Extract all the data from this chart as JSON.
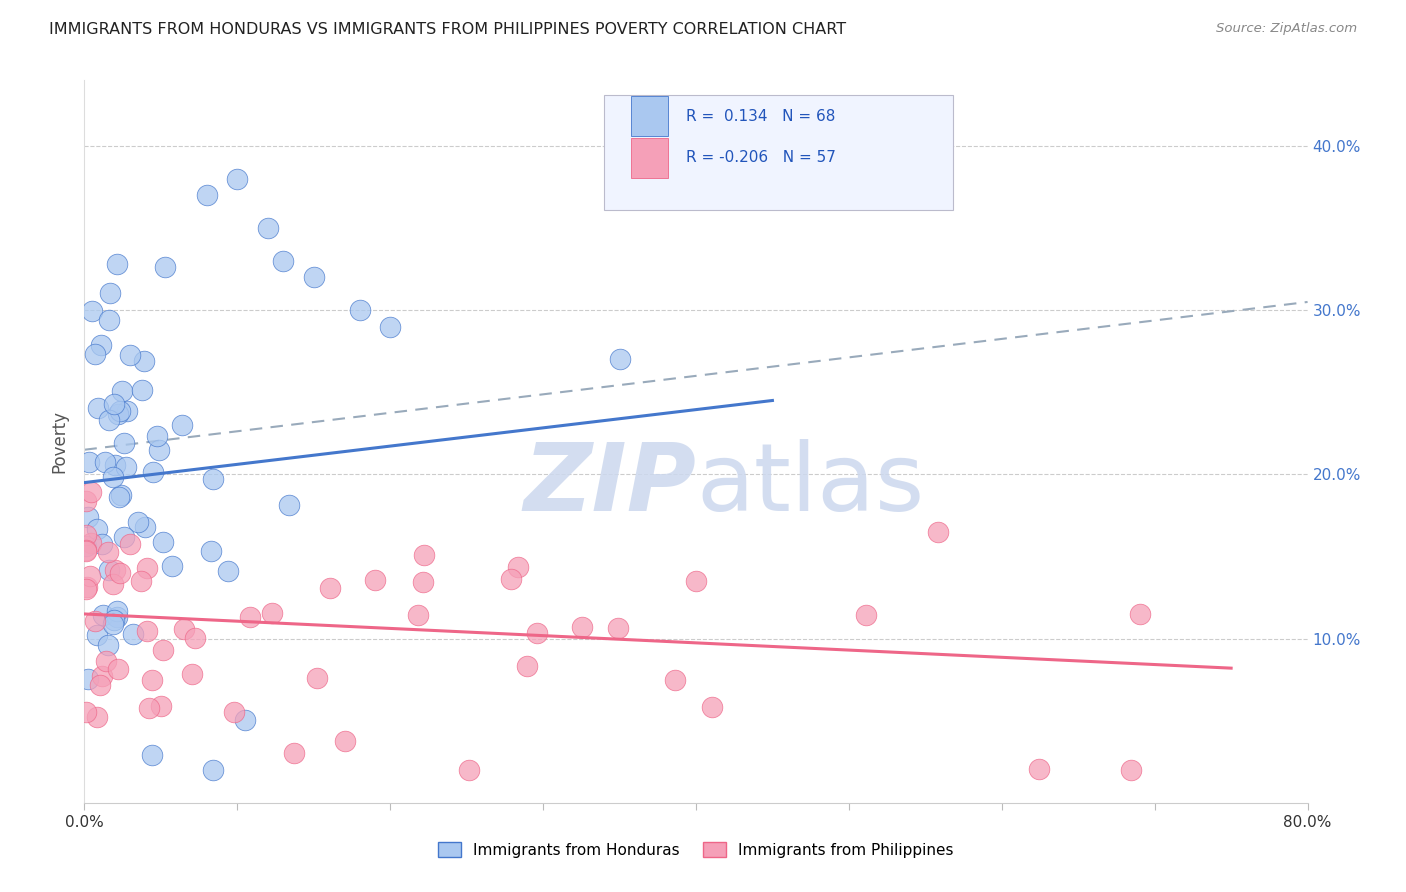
{
  "title": "IMMIGRANTS FROM HONDURAS VS IMMIGRANTS FROM PHILIPPINES POVERTY CORRELATION CHART",
  "source": "Source: ZipAtlas.com",
  "ylabel": "Poverty",
  "yticks": [
    0.1,
    0.2,
    0.3,
    0.4
  ],
  "ytick_labels": [
    "10.0%",
    "20.0%",
    "30.0%",
    "40.0%"
  ],
  "xlim": [
    0.0,
    0.8
  ],
  "ylim": [
    0.0,
    0.44
  ],
  "legend_r_honduras": "0.134",
  "legend_n_honduras": "68",
  "legend_r_philippines": "-0.206",
  "legend_n_philippines": "57",
  "color_honduras_fill": "#aac8f0",
  "color_philippines_fill": "#f5a0b8",
  "color_line_honduras": "#4477cc",
  "color_line_philippines": "#ee6688",
  "color_dashed": "#99aabb",
  "watermark_zip": "ZIP",
  "watermark_atlas": "atlas",
  "background_color": "#ffffff",
  "legend_label_honduras": "Immigrants from Honduras",
  "legend_label_philippines": "Immigrants from Philippines",
  "hon_line_x0": 0.0,
  "hon_line_y0": 0.195,
  "hon_line_x1": 0.45,
  "hon_line_y1": 0.245,
  "phi_line_x0": 0.0,
  "phi_line_y0": 0.115,
  "phi_line_x1": 0.75,
  "phi_line_y1": 0.082,
  "dash_line_x0": 0.0,
  "dash_line_y0": 0.215,
  "dash_line_x1": 0.8,
  "dash_line_y1": 0.305
}
